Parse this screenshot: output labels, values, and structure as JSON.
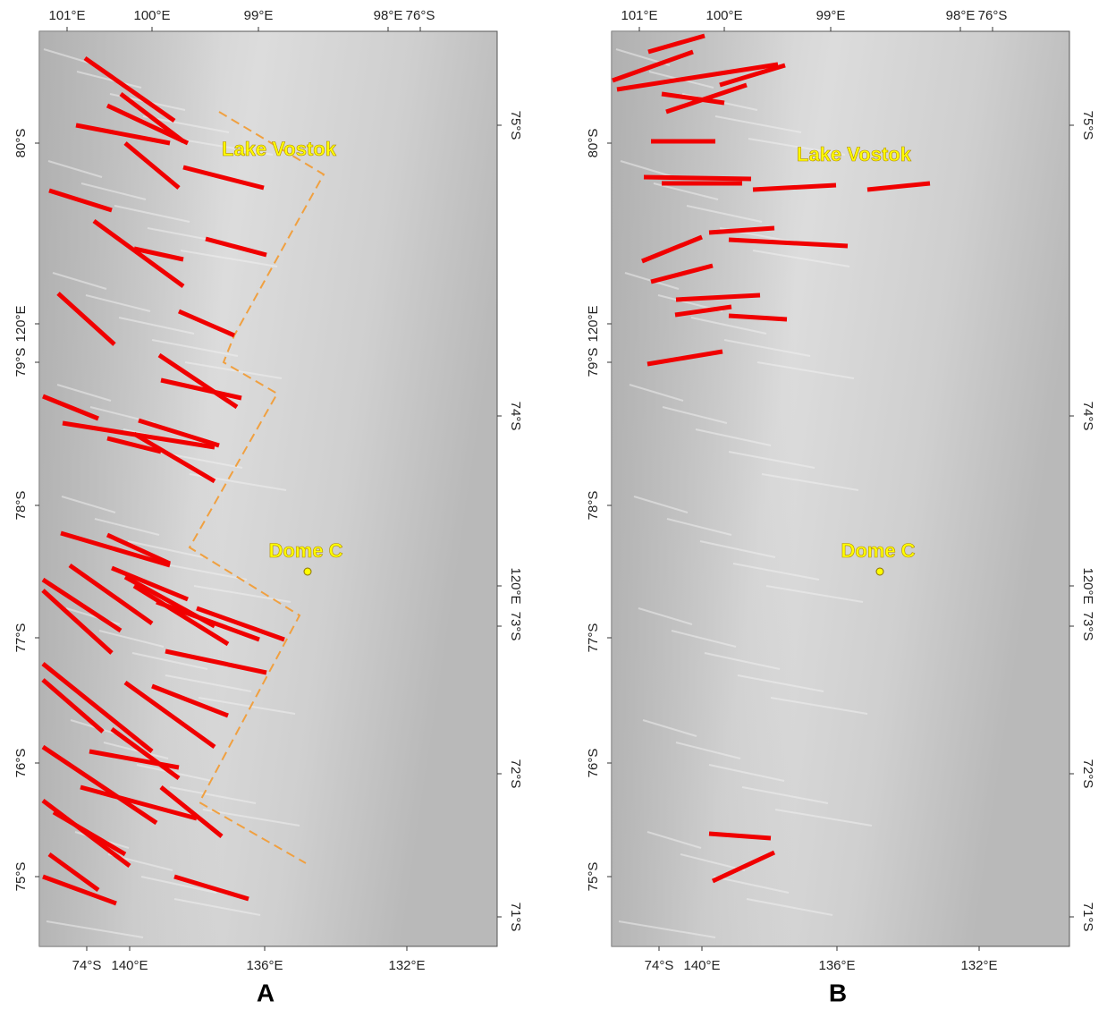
{
  "panels": [
    {
      "label": "A",
      "top_labels": [
        "101°E",
        "100°E",
        "99°E",
        "98°E",
        "76°S"
      ],
      "left_labels": [
        "80°S",
        "120°E",
        "79°S",
        "78°S",
        "77°S",
        "76°S",
        "75°S"
      ],
      "right_labels": [
        "75°S",
        "74°S",
        "120°E",
        "73°S",
        "72°S",
        "71°S"
      ],
      "bottom_labels": [
        "74°S",
        "140°E",
        "136°E",
        "132°E"
      ],
      "annotations": [
        "Lake Vostok",
        "Dome C"
      ]
    },
    {
      "label": "B",
      "top_labels": [
        "101°E",
        "100°E",
        "99°E",
        "98°E",
        "76°S"
      ],
      "left_labels": [
        "80°S",
        "120°E",
        "79°S",
        "78°S",
        "77°S",
        "76°S",
        "75°S"
      ],
      "right_labels": [
        "75°S",
        "74°S",
        "120°E",
        "73°S",
        "72°S",
        "71°S"
      ],
      "bottom_labels": [
        "74°S",
        "140°E",
        "136°E",
        "132°E"
      ],
      "annotations": [
        "Lake Vostok",
        "Dome C"
      ]
    }
  ]
}
